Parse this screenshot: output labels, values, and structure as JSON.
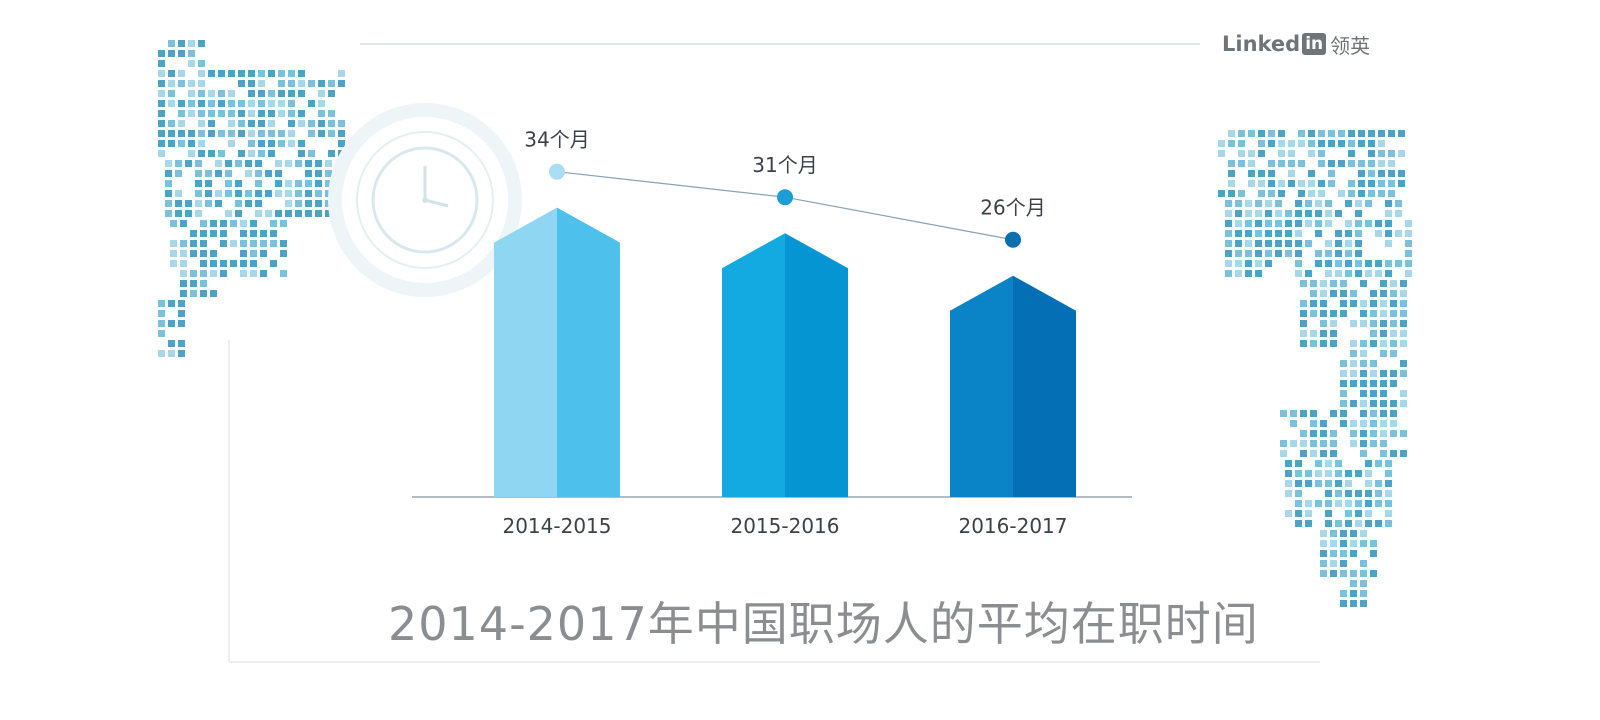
{
  "brand": {
    "prefix": "Linked",
    "in_box": "in",
    "chinese": "领英"
  },
  "chart_data": {
    "type": "bar",
    "title": "2014-2017年中国职场人的平均在职时间",
    "categories": [
      "2014-2015",
      "2015-2016",
      "2016-2017"
    ],
    "values": [
      34,
      31,
      26
    ],
    "data_labels": [
      "34个月",
      "31个月",
      "26个月"
    ],
    "overlay_line": true,
    "colors": {
      "bars_light": [
        "#8fd6f2",
        "#12aae0",
        "#0a83c7"
      ],
      "bars_dark": [
        "#4ec0ec",
        "#0595d2",
        "#056fb5"
      ],
      "dots": [
        "#a9def4",
        "#1b9ed6",
        "#0c6fae"
      ],
      "line": "#8aa2b4",
      "baseline": "#9aa5b1",
      "map": [
        "#4da3c6",
        "#7cc1dc",
        "#a9d7ea"
      ]
    }
  }
}
